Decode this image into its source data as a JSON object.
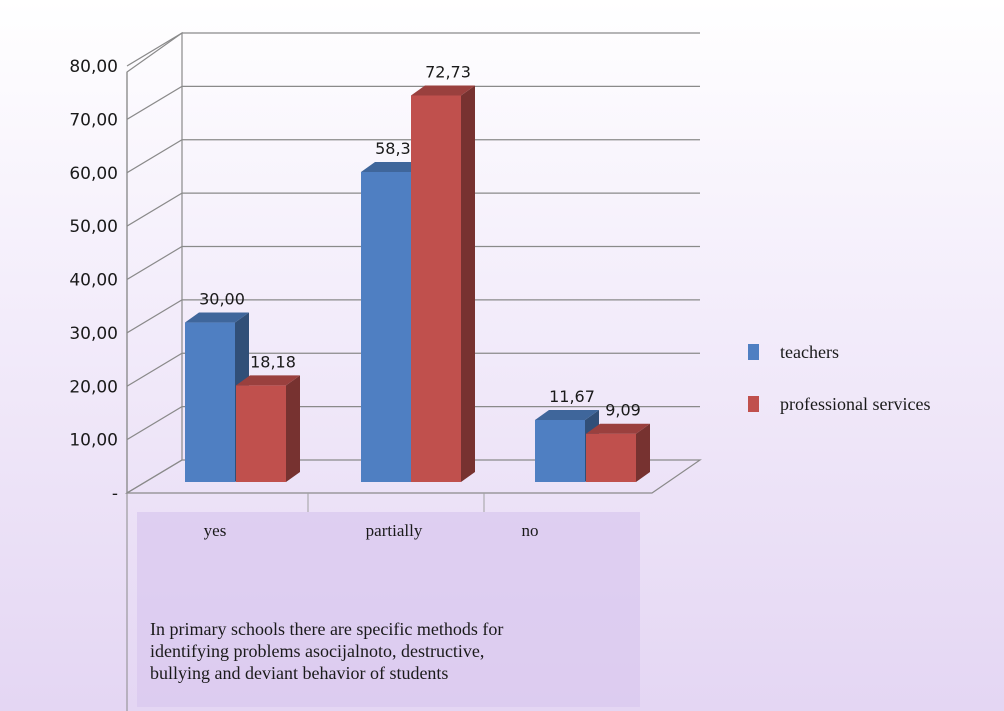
{
  "chart_data": {
    "type": "bar",
    "categories": [
      "yes",
      "partially",
      "no"
    ],
    "series": [
      {
        "name": "teachers",
        "values": [
          30.0,
          58.33,
          11.67
        ],
        "labels": [
          "30,00",
          "58,33",
          "11,67"
        ],
        "color": "#4f7fc2"
      },
      {
        "name": "professional services",
        "values": [
          18.18,
          72.73,
          9.09
        ],
        "labels": [
          "18,18",
          "72,73",
          "9,09"
        ],
        "color": "#c0504d"
      }
    ],
    "ylim": [
      0,
      80
    ],
    "yticks": [
      0,
      10,
      20,
      30,
      40,
      50,
      60,
      70,
      80
    ],
    "ytick_labels": [
      "-",
      "10,00",
      "20,00",
      "30,00",
      "40,00",
      "50,00",
      "60,00",
      "70,00",
      "80,00"
    ],
    "grid": true,
    "legend_position": "right",
    "style": "3d-column",
    "caption": "In primary schools there are specific methods for\nidentifying problems asocijalnoto, destructive,\nbullying and deviant behavior of students"
  }
}
